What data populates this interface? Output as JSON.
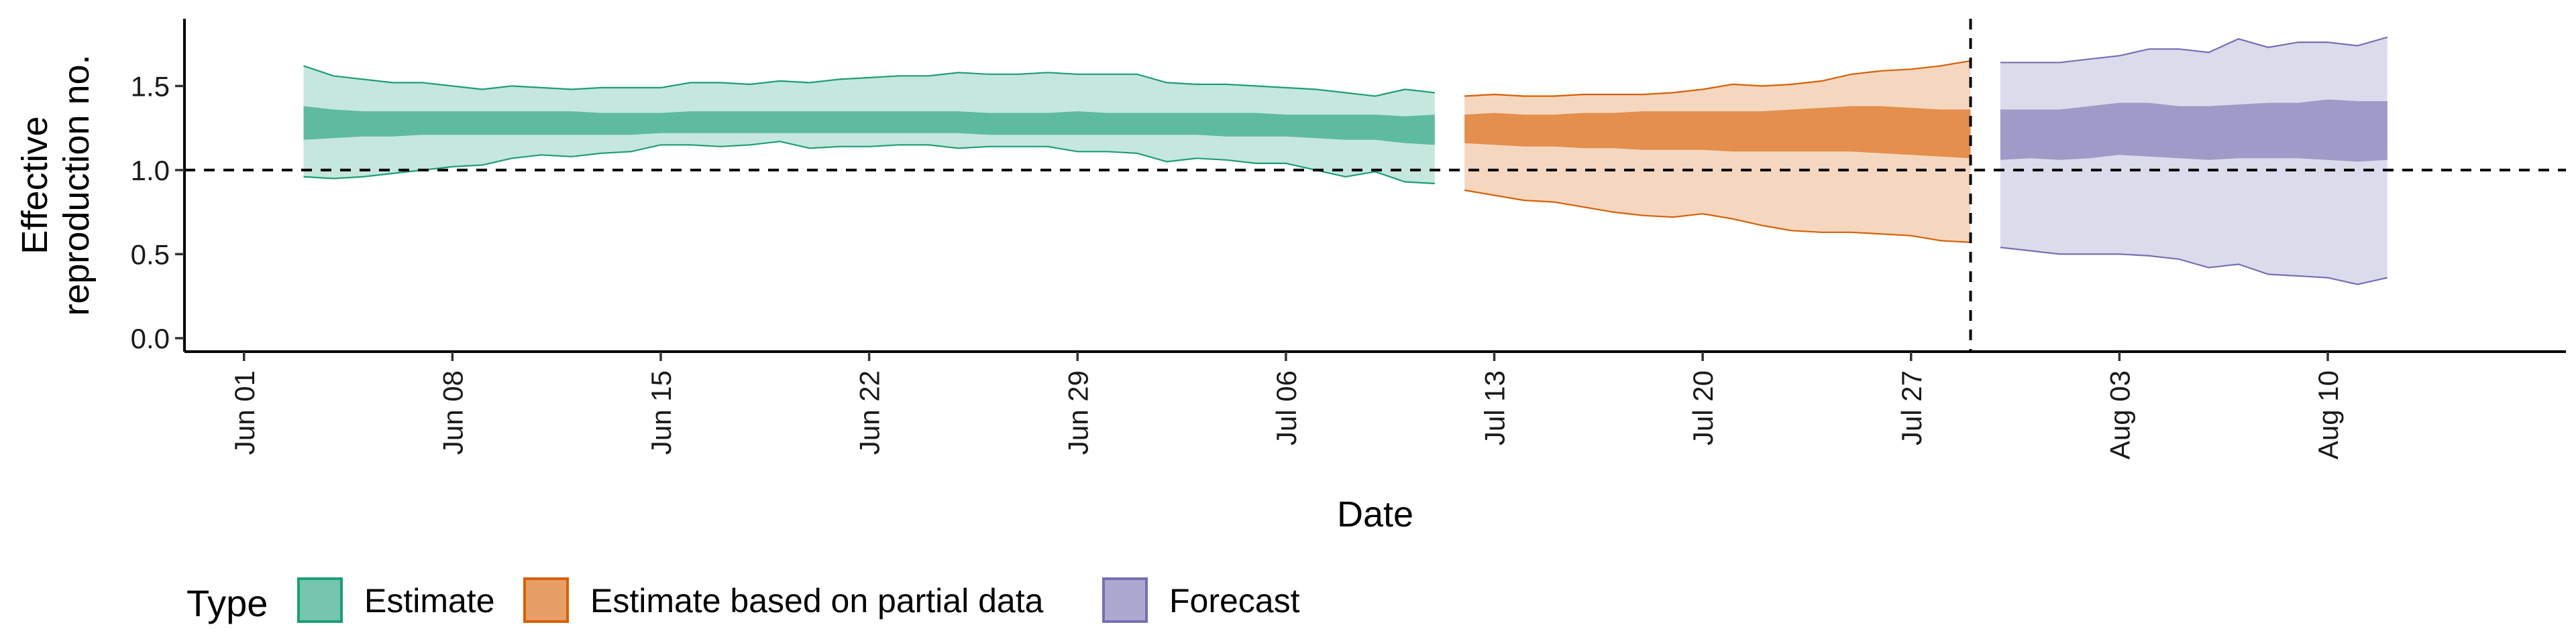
{
  "chart_data": {
    "type": "area",
    "xlabel": "Date",
    "ylabel_lines": [
      "Effective",
      "reproduction no."
    ],
    "x_tick_labels": [
      "Jun 01",
      "Jun 08",
      "Jun 15",
      "Jun 22",
      "Jun 29",
      "Jul 06",
      "Jul 13",
      "Jul 20",
      "Jul 27",
      "Aug 03",
      "Aug 10"
    ],
    "x_tick_dates": [
      "2020-06-01",
      "2020-06-08",
      "2020-06-15",
      "2020-06-22",
      "2020-06-29",
      "2020-07-06",
      "2020-07-13",
      "2020-07-20",
      "2020-07-27",
      "2020-08-03",
      "2020-08-10"
    ],
    "xlim": [
      "2020-05-30",
      "2020-08-18"
    ],
    "y_ticks": [
      "0.0",
      "0.5",
      "1.0",
      "1.5"
    ],
    "ylim": [
      -0.08,
      1.9
    ],
    "reference_line_y": 1.0,
    "reference_line_x": "2020-07-29",
    "legend_title": "Type",
    "legend_position": "bottom",
    "series": [
      {
        "name": "Estimate",
        "fill_color": "#1b9e77",
        "x": [
          "2020-06-03",
          "2020-06-04",
          "2020-06-05",
          "2020-06-06",
          "2020-06-07",
          "2020-06-08",
          "2020-06-09",
          "2020-06-10",
          "2020-06-11",
          "2020-06-12",
          "2020-06-13",
          "2020-06-14",
          "2020-06-15",
          "2020-06-16",
          "2020-06-17",
          "2020-06-18",
          "2020-06-19",
          "2020-06-20",
          "2020-06-21",
          "2020-06-22",
          "2020-06-23",
          "2020-06-24",
          "2020-06-25",
          "2020-06-26",
          "2020-06-27",
          "2020-06-28",
          "2020-06-29",
          "2020-06-30",
          "2020-07-01",
          "2020-07-02",
          "2020-07-03",
          "2020-07-04",
          "2020-07-05",
          "2020-07-06",
          "2020-07-07",
          "2020-07-08",
          "2020-07-09",
          "2020-07-10",
          "2020-07-11"
        ],
        "upper90": [
          1.62,
          1.56,
          1.54,
          1.52,
          1.52,
          1.5,
          1.48,
          1.5,
          1.49,
          1.48,
          1.49,
          1.49,
          1.49,
          1.52,
          1.52,
          1.51,
          1.53,
          1.52,
          1.54,
          1.55,
          1.56,
          1.56,
          1.58,
          1.57,
          1.57,
          1.58,
          1.57,
          1.57,
          1.57,
          1.52,
          1.51,
          1.51,
          1.5,
          1.49,
          1.48,
          1.46,
          1.44,
          1.48,
          1.46
        ],
        "lower90": [
          0.96,
          0.95,
          0.96,
          0.98,
          1.0,
          1.02,
          1.03,
          1.07,
          1.09,
          1.08,
          1.1,
          1.11,
          1.15,
          1.15,
          1.14,
          1.15,
          1.17,
          1.13,
          1.14,
          1.14,
          1.15,
          1.15,
          1.13,
          1.14,
          1.14,
          1.14,
          1.11,
          1.11,
          1.1,
          1.05,
          1.07,
          1.06,
          1.04,
          1.04,
          1.0,
          0.96,
          0.99,
          0.93,
          0.92
        ],
        "upper50": [
          1.38,
          1.36,
          1.35,
          1.35,
          1.35,
          1.35,
          1.35,
          1.35,
          1.35,
          1.35,
          1.34,
          1.34,
          1.34,
          1.35,
          1.35,
          1.35,
          1.35,
          1.35,
          1.35,
          1.35,
          1.35,
          1.35,
          1.35,
          1.34,
          1.34,
          1.34,
          1.35,
          1.34,
          1.34,
          1.34,
          1.34,
          1.34,
          1.34,
          1.33,
          1.33,
          1.33,
          1.33,
          1.32,
          1.33
        ],
        "lower50": [
          1.18,
          1.19,
          1.2,
          1.2,
          1.21,
          1.21,
          1.21,
          1.21,
          1.21,
          1.21,
          1.21,
          1.21,
          1.22,
          1.22,
          1.22,
          1.22,
          1.22,
          1.22,
          1.22,
          1.22,
          1.22,
          1.22,
          1.22,
          1.21,
          1.21,
          1.21,
          1.21,
          1.21,
          1.21,
          1.21,
          1.21,
          1.2,
          1.2,
          1.2,
          1.19,
          1.18,
          1.18,
          1.16,
          1.15
        ]
      },
      {
        "name": "Estimate based on partial data",
        "fill_color": "#d95f02",
        "x": [
          "2020-07-12",
          "2020-07-13",
          "2020-07-14",
          "2020-07-15",
          "2020-07-16",
          "2020-07-17",
          "2020-07-18",
          "2020-07-19",
          "2020-07-20",
          "2020-07-21",
          "2020-07-22",
          "2020-07-23",
          "2020-07-24",
          "2020-07-25",
          "2020-07-26",
          "2020-07-27",
          "2020-07-28",
          "2020-07-29"
        ],
        "upper90": [
          1.44,
          1.45,
          1.44,
          1.44,
          1.45,
          1.45,
          1.45,
          1.46,
          1.48,
          1.51,
          1.5,
          1.51,
          1.53,
          1.57,
          1.59,
          1.6,
          1.62,
          1.65
        ],
        "lower90": [
          0.88,
          0.85,
          0.82,
          0.81,
          0.78,
          0.75,
          0.73,
          0.72,
          0.74,
          0.71,
          0.67,
          0.64,
          0.63,
          0.63,
          0.62,
          0.61,
          0.58,
          0.57
        ],
        "upper50": [
          1.33,
          1.34,
          1.33,
          1.33,
          1.34,
          1.34,
          1.35,
          1.35,
          1.35,
          1.35,
          1.35,
          1.36,
          1.37,
          1.38,
          1.38,
          1.37,
          1.36,
          1.36
        ],
        "lower50": [
          1.16,
          1.15,
          1.14,
          1.14,
          1.13,
          1.13,
          1.12,
          1.12,
          1.12,
          1.11,
          1.11,
          1.11,
          1.11,
          1.11,
          1.1,
          1.09,
          1.08,
          1.07
        ]
      },
      {
        "name": "Forecast",
        "fill_color": "#7570b3",
        "x": [
          "2020-07-30",
          "2020-07-31",
          "2020-08-01",
          "2020-08-02",
          "2020-08-03",
          "2020-08-04",
          "2020-08-05",
          "2020-08-06",
          "2020-08-07",
          "2020-08-08",
          "2020-08-09",
          "2020-08-10",
          "2020-08-11",
          "2020-08-12"
        ],
        "upper90": [
          1.64,
          1.64,
          1.64,
          1.66,
          1.68,
          1.72,
          1.72,
          1.7,
          1.78,
          1.73,
          1.76,
          1.76,
          1.74,
          1.79
        ],
        "lower90": [
          0.54,
          0.52,
          0.5,
          0.5,
          0.5,
          0.49,
          0.47,
          0.42,
          0.44,
          0.38,
          0.37,
          0.36,
          0.32,
          0.36
        ],
        "upper50": [
          1.36,
          1.36,
          1.36,
          1.38,
          1.4,
          1.4,
          1.38,
          1.38,
          1.39,
          1.4,
          1.4,
          1.42,
          1.41,
          1.41
        ],
        "lower50": [
          1.06,
          1.07,
          1.06,
          1.07,
          1.09,
          1.08,
          1.07,
          1.06,
          1.07,
          1.07,
          1.07,
          1.06,
          1.05,
          1.06
        ]
      }
    ]
  }
}
